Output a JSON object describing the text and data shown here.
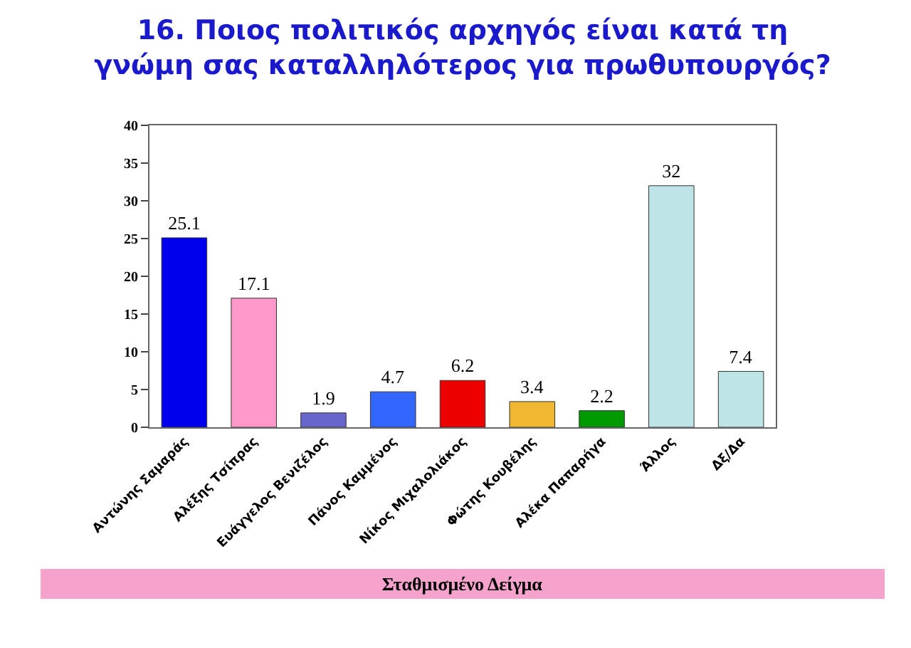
{
  "chart_data": {
    "type": "bar",
    "title": "16. Ποιος πολιτικός αρχηγός είναι κατά τη γνώμη σας καταλληλότερος για πρωθυπουργός?",
    "categories": [
      "Αντώνης Σαμαράς",
      "Αλέξης Τσίπρας",
      "Ευάγγελος Βενιζέλος",
      "Πάνος Καμμένος",
      "Νίκος Μιχαλολιάκος",
      "Φώτης Κουβέλης",
      "Αλέκα Παπαρήγα",
      "Άλλος",
      "Δξ/Δα"
    ],
    "values": [
      25.1,
      17.1,
      1.9,
      4.7,
      6.2,
      3.4,
      2.2,
      32,
      7.4
    ],
    "colors": [
      "#0000ee",
      "#ff99cc",
      "#6666cc",
      "#3366ff",
      "#ee0000",
      "#f0b830",
      "#009900",
      "#bfe4e8",
      "#bfe4e8"
    ],
    "ylim": [
      0,
      40
    ],
    "yticks": [
      0,
      5,
      10,
      15,
      20,
      25,
      30,
      35,
      40
    ],
    "grid": false,
    "data_labels": true,
    "annotations": [
      "Σταθμισμένο Δείγμα"
    ]
  }
}
